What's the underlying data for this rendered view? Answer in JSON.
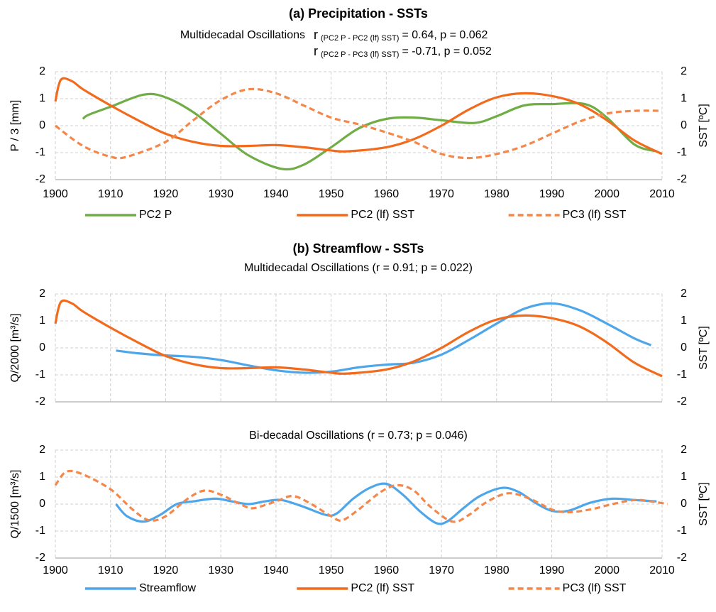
{
  "chart_data": [
    {
      "type": "line",
      "title": "(a)   Precipitation - SSTs",
      "subtitle": "Multidecadal Oscillations",
      "annotations": [
        {
          "prefix": "r",
          "subscript": "(PC2 P  - PC2 (lf) SST)",
          "suffix": "= 0.64,  p = 0.062"
        },
        {
          "prefix": "r",
          "subscript": "(PC2 P - PC3 (lf) SST)",
          "suffix": "= -0.71, p = 0.052"
        }
      ],
      "ylabel": "P / 3 [mm]",
      "y2label": "SST [ºC]",
      "xlim": [
        1900,
        2010
      ],
      "xticks": [
        1900,
        1910,
        1920,
        1930,
        1940,
        1950,
        1960,
        1970,
        1980,
        1990,
        2000,
        2010
      ],
      "ylim": [
        -2,
        2
      ],
      "yticks": [
        -2,
        -1,
        0,
        1,
        2
      ],
      "y2lim": [
        -2,
        2
      ],
      "y2ticks": [
        -2,
        -1,
        0,
        1,
        2
      ],
      "grid": true,
      "xtick_labels": true,
      "legend": "bottom",
      "series": [
        {
          "name": "PC2 P",
          "color": "#70ad47",
          "dash": false,
          "x": [
            1905,
            1906,
            1910,
            1916,
            1920,
            1925,
            1930,
            1935,
            1941,
            1945,
            1950,
            1955,
            1960,
            1965,
            1970,
            1976,
            1980,
            1985,
            1990,
            1996,
            2000,
            2005,
            2009
          ],
          "values": [
            0.25,
            0.4,
            0.7,
            1.15,
            1.05,
            0.5,
            -0.3,
            -1.1,
            -1.6,
            -1.45,
            -0.8,
            -0.1,
            0.25,
            0.3,
            0.2,
            0.1,
            0.35,
            0.75,
            0.8,
            0.8,
            0.3,
            -0.7,
            -0.95
          ]
        },
        {
          "name": "PC2 (lf) SST",
          "color": "#f26b1d",
          "dash": false,
          "axis": "y2",
          "x": [
            1900,
            1901,
            1903,
            1905,
            1910,
            1915,
            1920,
            1925,
            1930,
            1935,
            1940,
            1945,
            1950,
            1953,
            1960,
            1965,
            1970,
            1975,
            1980,
            1985,
            1990,
            1995,
            2000,
            2005,
            2010
          ],
          "values": [
            0.9,
            1.7,
            1.65,
            1.35,
            0.75,
            0.2,
            -0.3,
            -0.6,
            -0.75,
            -0.75,
            -0.72,
            -0.8,
            -0.92,
            -0.95,
            -0.8,
            -0.5,
            0,
            0.6,
            1.05,
            1.2,
            1.1,
            0.8,
            0.2,
            -0.55,
            -1.05
          ]
        },
        {
          "name": "PC3 (lf) SST",
          "color": "#f4874a",
          "dash": true,
          "axis": "y2",
          "x": [
            1900,
            1905,
            1910,
            1913,
            1920,
            1925,
            1930,
            1935,
            1940,
            1945,
            1950,
            1955,
            1960,
            1965,
            1970,
            1975,
            1980,
            1985,
            1990,
            1995,
            2000,
            2005,
            2010
          ],
          "values": [
            0,
            -0.75,
            -1.15,
            -1.15,
            -0.6,
            0.2,
            0.95,
            1.35,
            1.2,
            0.75,
            0.3,
            0.05,
            -0.25,
            -0.6,
            -1.05,
            -1.2,
            -1.05,
            -0.75,
            -0.3,
            0.15,
            0.45,
            0.55,
            0.55
          ]
        }
      ]
    },
    {
      "type": "line",
      "title": "(b)    Streamflow - SSTs",
      "subtitle": "Multidecadal Oscillations (r = 0.91; p = 0.022)",
      "ylabel": "Q/2000 [m³/s]",
      "y2label": "SST [ºC]",
      "xlim": [
        1900,
        2010
      ],
      "xticks": [
        1900,
        1910,
        1920,
        1930,
        1940,
        1950,
        1960,
        1970,
        1980,
        1990,
        2000,
        2010
      ],
      "ylim": [
        -2,
        2
      ],
      "yticks": [
        -2,
        -1,
        0,
        1,
        2
      ],
      "y2lim": [
        -2,
        2
      ],
      "y2ticks": [
        -2,
        -1,
        0,
        1,
        2
      ],
      "grid": true,
      "xtick_labels": false,
      "series": [
        {
          "color": "#4ea6ea",
          "dash": false,
          "x": [
            1911,
            1915,
            1920,
            1925,
            1930,
            1935,
            1940,
            1945,
            1950,
            1955,
            1960,
            1965,
            1970,
            1975,
            1980,
            1985,
            1990,
            1995,
            2000,
            2005,
            2008
          ],
          "values": [
            -0.1,
            -0.2,
            -0.28,
            -0.33,
            -0.45,
            -0.65,
            -0.83,
            -0.92,
            -0.88,
            -0.72,
            -0.62,
            -0.55,
            -0.25,
            0.3,
            0.9,
            1.45,
            1.65,
            1.4,
            0.9,
            0.35,
            0.1
          ]
        },
        {
          "color": "#f26b1d",
          "dash": false,
          "axis": "y2",
          "x": [
            1900,
            1901,
            1903,
            1905,
            1910,
            1915,
            1920,
            1925,
            1930,
            1935,
            1940,
            1945,
            1950,
            1953,
            1960,
            1965,
            1970,
            1975,
            1980,
            1985,
            1990,
            1995,
            2000,
            2005,
            2010
          ],
          "values": [
            0.9,
            1.7,
            1.65,
            1.35,
            0.75,
            0.2,
            -0.3,
            -0.6,
            -0.75,
            -0.75,
            -0.72,
            -0.8,
            -0.92,
            -0.95,
            -0.8,
            -0.5,
            0,
            0.6,
            1.05,
            1.2,
            1.1,
            0.8,
            0.2,
            -0.55,
            -1.05
          ]
        }
      ]
    },
    {
      "type": "line",
      "subtitle": "Bi-decadal Oscillations (r = 0.73; p = 0.046)",
      "ylabel": "Q/1500 [m³/s]",
      "y2label": "SST [ºC]",
      "xlim": [
        1900,
        2010
      ],
      "xticks": [
        1900,
        1910,
        1920,
        1930,
        1940,
        1950,
        1960,
        1970,
        1980,
        1990,
        2000,
        2010
      ],
      "ylim": [
        -2,
        2
      ],
      "yticks": [
        -2,
        -1,
        0,
        1,
        2
      ],
      "y2lim": [
        -2,
        2
      ],
      "y2ticks": [
        -2,
        -1,
        0,
        1,
        2
      ],
      "grid": true,
      "xtick_labels": true,
      "legend": {
        "position": "bottom",
        "items": [
          {
            "name": "Streamflow",
            "color": "#4ea6ea",
            "dash": false
          },
          {
            "name": "PC2 (lf) SST",
            "color": "#f26b1d",
            "dash": false
          },
          {
            "name": "PC3 (lf) SST",
            "color": "#f4874a",
            "dash": true
          }
        ]
      },
      "series": [
        {
          "color": "#4ea6ea",
          "dash": false,
          "x": [
            1911,
            1913,
            1916,
            1919,
            1922,
            1925,
            1929,
            1932,
            1935,
            1938,
            1941,
            1945,
            1949,
            1951,
            1954,
            1957,
            1960,
            1963,
            1966,
            1969,
            1971,
            1974,
            1977,
            1981,
            1984,
            1987,
            1990,
            1993,
            1997,
            2001,
            2005,
            2009
          ],
          "values": [
            0,
            -0.45,
            -0.65,
            -0.4,
            0,
            0.1,
            0.2,
            0.1,
            0,
            0.1,
            0.15,
            -0.1,
            -0.4,
            -0.35,
            0.2,
            0.6,
            0.75,
            0.35,
            -0.25,
            -0.7,
            -0.65,
            -0.15,
            0.3,
            0.6,
            0.45,
            0.05,
            -0.25,
            -0.25,
            0.05,
            0.2,
            0.15,
            0.1
          ]
        },
        {
          "color": "#f4874a",
          "dash": true,
          "axis": "y2",
          "x": [
            1900,
            1902,
            1905,
            1910,
            1914,
            1917,
            1920,
            1924,
            1927,
            1930,
            1934,
            1936,
            1940,
            1943,
            1946,
            1950,
            1952,
            1955,
            1959,
            1962,
            1965,
            1968,
            1972,
            1975,
            1978,
            1982,
            1986,
            1990,
            1993,
            1997,
            2001,
            2005,
            2008,
            2011
          ],
          "values": [
            0.7,
            1.2,
            1.1,
            0.55,
            -0.2,
            -0.6,
            -0.45,
            0.2,
            0.5,
            0.35,
            -0.05,
            -0.15,
            0.1,
            0.3,
            0.05,
            -0.45,
            -0.6,
            -0.2,
            0.45,
            0.7,
            0.5,
            -0.1,
            -0.65,
            -0.4,
            0.05,
            0.4,
            0.2,
            -0.2,
            -0.3,
            -0.2,
            0,
            0.15,
            0.1,
            0
          ]
        }
      ]
    }
  ]
}
